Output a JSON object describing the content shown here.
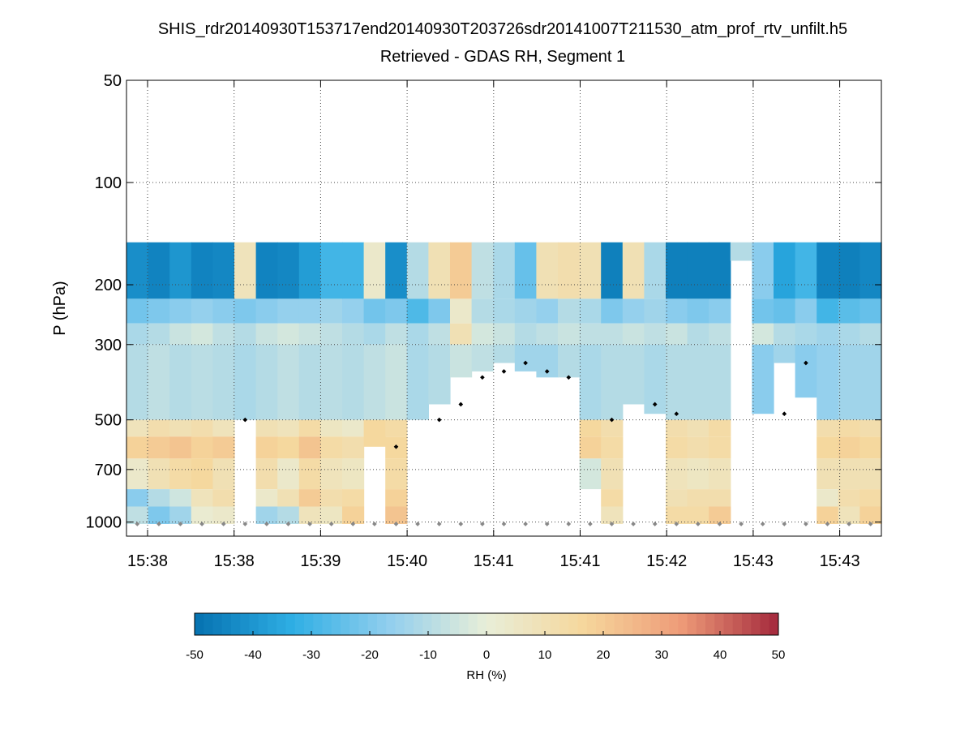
{
  "chart_data": {
    "type": "heatmap",
    "title": "SHIS_rdr20140930T153717end20140930T203726sdr20141007T211530_atm_prof_rtv_unfilt.h5",
    "subtitle": "Retrieved - GDAS RH, Segment 1",
    "xlabel": "",
    "ylabel": "P (hPa)",
    "x_tick_labels": [
      "15:38",
      "15:38",
      "15:39",
      "15:40",
      "15:41",
      "15:41",
      "15:42",
      "15:43",
      "15:43"
    ],
    "y_scale": "log",
    "y_reversed": true,
    "ylim": [
      1100,
      50
    ],
    "y_ticks": [
      50,
      100,
      200,
      300,
      500,
      700,
      1000
    ],
    "grid": true,
    "colorbar": {
      "label": "RH (%)",
      "range": [
        -50,
        50
      ],
      "ticks": [
        -50,
        -40,
        -30,
        -20,
        -10,
        0,
        10,
        20,
        30,
        40,
        50
      ],
      "colormap": [
        "#0571b0",
        "#2eaee4",
        "#92cfee",
        "#e8eed8",
        "#f6d79c",
        "#ee9b78",
        "#a3283c"
      ]
    },
    "num_columns": 35,
    "surface_pressure": 1013,
    "cloud_top_pressure_markers": [
      null,
      null,
      null,
      null,
      null,
      500,
      null,
      null,
      null,
      null,
      null,
      null,
      600,
      null,
      500,
      450,
      375,
      360,
      340,
      360,
      375,
      null,
      500,
      null,
      450,
      480,
      null,
      null,
      null,
      null,
      480,
      340,
      null,
      null,
      null
    ],
    "series": [
      {
        "name": "cloud-top cloud markers",
        "values": [
          null,
          null,
          null,
          null,
          null,
          500,
          null,
          null,
          null,
          null,
          null,
          null,
          600,
          null,
          500,
          450,
          375,
          360,
          340,
          360,
          375,
          null,
          500,
          null,
          450,
          480,
          null,
          null,
          null,
          null,
          480,
          340,
          null,
          null,
          null
        ]
      }
    ],
    "rh_diff_profiles_note": "values in RH (%) by column; each profile lists [pressure_top_hPa, pressure_bottom_hPa, value]",
    "profiles": [
      [
        [
          150,
          220,
          -42
        ],
        [
          220,
          260,
          -22
        ],
        [
          260,
          300,
          -12
        ],
        [
          300,
          500,
          -10
        ],
        [
          500,
          560,
          8
        ],
        [
          560,
          650,
          18
        ],
        [
          650,
          800,
          4
        ],
        [
          800,
          900,
          -18
        ],
        [
          900,
          1013,
          -8
        ]
      ],
      [
        [
          150,
          220,
          -45
        ],
        [
          220,
          260,
          -20
        ],
        [
          260,
          300,
          -10
        ],
        [
          300,
          500,
          -8
        ],
        [
          500,
          560,
          12
        ],
        [
          560,
          650,
          20
        ],
        [
          650,
          800,
          10
        ],
        [
          800,
          900,
          -10
        ],
        [
          900,
          1013,
          -20
        ]
      ],
      [
        [
          150,
          220,
          -40
        ],
        [
          220,
          260,
          -18
        ],
        [
          260,
          300,
          -6
        ],
        [
          300,
          500,
          -10
        ],
        [
          500,
          560,
          10
        ],
        [
          560,
          650,
          22
        ],
        [
          650,
          800,
          14
        ],
        [
          800,
          900,
          -5
        ],
        [
          900,
          1013,
          -14
        ]
      ],
      [
        [
          150,
          220,
          -45
        ],
        [
          220,
          260,
          -16
        ],
        [
          260,
          300,
          -4
        ],
        [
          300,
          500,
          -9
        ],
        [
          500,
          560,
          12
        ],
        [
          560,
          650,
          18
        ],
        [
          650,
          800,
          16
        ],
        [
          800,
          900,
          8
        ],
        [
          900,
          1013,
          2
        ]
      ],
      [
        [
          150,
          220,
          -44
        ],
        [
          220,
          260,
          -18
        ],
        [
          260,
          300,
          -8
        ],
        [
          300,
          500,
          -10
        ],
        [
          500,
          560,
          8
        ],
        [
          560,
          650,
          20
        ],
        [
          650,
          800,
          10
        ],
        [
          800,
          900,
          12
        ],
        [
          900,
          1013,
          4
        ]
      ],
      [
        [
          150,
          220,
          8
        ],
        [
          220,
          260,
          -20
        ],
        [
          260,
          300,
          -10
        ],
        [
          300,
          500,
          -12
        ],
        [
          500,
          1013,
          null
        ]
      ],
      [
        [
          150,
          220,
          -45
        ],
        [
          220,
          260,
          -18
        ],
        [
          260,
          300,
          -6
        ],
        [
          300,
          500,
          -10
        ],
        [
          500,
          560,
          10
        ],
        [
          560,
          650,
          18
        ],
        [
          650,
          800,
          12
        ],
        [
          800,
          900,
          4
        ],
        [
          900,
          1013,
          -14
        ]
      ],
      [
        [
          150,
          220,
          -44
        ],
        [
          220,
          260,
          -16
        ],
        [
          260,
          300,
          -4
        ],
        [
          300,
          500,
          -8
        ],
        [
          500,
          560,
          8
        ],
        [
          560,
          650,
          16
        ],
        [
          650,
          800,
          4
        ],
        [
          800,
          900,
          10
        ],
        [
          900,
          1013,
          -10
        ]
      ],
      [
        [
          150,
          220,
          -38
        ],
        [
          220,
          260,
          -16
        ],
        [
          260,
          300,
          -6
        ],
        [
          300,
          500,
          -10
        ],
        [
          500,
          560,
          14
        ],
        [
          560,
          650,
          22
        ],
        [
          650,
          800,
          14
        ],
        [
          800,
          900,
          20
        ],
        [
          900,
          1013,
          8
        ]
      ],
      [
        [
          150,
          220,
          -30
        ],
        [
          220,
          260,
          -14
        ],
        [
          260,
          300,
          -8
        ],
        [
          300,
          500,
          -9
        ],
        [
          500,
          560,
          6
        ],
        [
          560,
          650,
          14
        ],
        [
          650,
          800,
          8
        ],
        [
          800,
          900,
          12
        ],
        [
          900,
          1013,
          6
        ]
      ],
      [
        [
          150,
          220,
          -30
        ],
        [
          220,
          260,
          -16
        ],
        [
          260,
          300,
          -10
        ],
        [
          300,
          500,
          -10
        ],
        [
          500,
          560,
          4
        ],
        [
          560,
          650,
          12
        ],
        [
          650,
          800,
          6
        ],
        [
          800,
          900,
          14
        ],
        [
          900,
          1013,
          18
        ]
      ],
      [
        [
          150,
          220,
          4
        ],
        [
          220,
          260,
          -22
        ],
        [
          260,
          300,
          -12
        ],
        [
          300,
          500,
          -8
        ],
        [
          500,
          600,
          16
        ],
        [
          600,
          1013,
          null
        ]
      ],
      [
        [
          150,
          220,
          -42
        ],
        [
          220,
          260,
          -20
        ],
        [
          260,
          300,
          -8
        ],
        [
          300,
          500,
          -6
        ],
        [
          500,
          560,
          14
        ],
        [
          560,
          650,
          16
        ],
        [
          650,
          800,
          14
        ],
        [
          800,
          900,
          18
        ],
        [
          900,
          1013,
          22
        ]
      ],
      [
        [
          150,
          220,
          -10
        ],
        [
          220,
          260,
          -28
        ],
        [
          260,
          300,
          -12
        ],
        [
          300,
          500,
          -12
        ],
        [
          500,
          1013,
          null
        ]
      ],
      [
        [
          150,
          220,
          10
        ],
        [
          220,
          260,
          -20
        ],
        [
          260,
          300,
          -8
        ],
        [
          300,
          450,
          -10
        ],
        [
          450,
          1013,
          null
        ]
      ],
      [
        [
          150,
          220,
          20
        ],
        [
          220,
          260,
          4
        ],
        [
          260,
          300,
          10
        ],
        [
          300,
          375,
          -6
        ],
        [
          375,
          1013,
          null
        ]
      ],
      [
        [
          150,
          220,
          -8
        ],
        [
          220,
          260,
          -10
        ],
        [
          260,
          300,
          -4
        ],
        [
          300,
          360,
          -8
        ],
        [
          360,
          1013,
          null
        ]
      ],
      [
        [
          150,
          220,
          -12
        ],
        [
          220,
          260,
          -12
        ],
        [
          260,
          300,
          -6
        ],
        [
          300,
          340,
          -10
        ],
        [
          340,
          1013,
          null
        ]
      ],
      [
        [
          150,
          220,
          -24
        ],
        [
          220,
          260,
          -14
        ],
        [
          260,
          300,
          -10
        ],
        [
          300,
          360,
          -14
        ],
        [
          360,
          1013,
          null
        ]
      ],
      [
        [
          150,
          220,
          10
        ],
        [
          220,
          260,
          -16
        ],
        [
          260,
          300,
          -8
        ],
        [
          300,
          375,
          -14
        ],
        [
          375,
          1013,
          null
        ]
      ],
      [
        [
          150,
          220,
          12
        ],
        [
          220,
          260,
          -10
        ],
        [
          260,
          300,
          -6
        ],
        [
          300,
          375,
          -10
        ],
        [
          375,
          1013,
          null
        ]
      ],
      [
        [
          150,
          220,
          10
        ],
        [
          220,
          260,
          -12
        ],
        [
          260,
          300,
          -8
        ],
        [
          300,
          500,
          -12
        ],
        [
          500,
          560,
          16
        ],
        [
          560,
          650,
          18
        ],
        [
          650,
          800,
          -4
        ],
        [
          800,
          1013,
          null
        ]
      ],
      [
        [
          150,
          220,
          -46
        ],
        [
          220,
          260,
          -20
        ],
        [
          260,
          300,
          -8
        ],
        [
          300,
          500,
          -10
        ],
        [
          500,
          560,
          12
        ],
        [
          560,
          650,
          14
        ],
        [
          650,
          800,
          10
        ],
        [
          800,
          900,
          14
        ],
        [
          900,
          1013,
          8
        ]
      ],
      [
        [
          150,
          220,
          10
        ],
        [
          220,
          260,
          -16
        ],
        [
          260,
          300,
          -6
        ],
        [
          300,
          450,
          -10
        ],
        [
          450,
          1013,
          null
        ]
      ],
      [
        [
          150,
          220,
          -12
        ],
        [
          220,
          260,
          -14
        ],
        [
          260,
          300,
          -8
        ],
        [
          300,
          480,
          -12
        ],
        [
          480,
          1013,
          null
        ]
      ],
      [
        [
          150,
          220,
          -46
        ],
        [
          220,
          260,
          -18
        ],
        [
          260,
          300,
          -6
        ],
        [
          300,
          500,
          -10
        ],
        [
          500,
          560,
          12
        ],
        [
          560,
          650,
          14
        ],
        [
          650,
          800,
          8
        ],
        [
          800,
          900,
          10
        ],
        [
          900,
          1013,
          14
        ]
      ],
      [
        [
          150,
          220,
          -46
        ],
        [
          220,
          260,
          -20
        ],
        [
          260,
          300,
          -10
        ],
        [
          300,
          500,
          -10
        ],
        [
          500,
          560,
          10
        ],
        [
          560,
          650,
          12
        ],
        [
          650,
          800,
          6
        ],
        [
          800,
          900,
          12
        ],
        [
          900,
          1013,
          14
        ]
      ],
      [
        [
          150,
          220,
          -46
        ],
        [
          220,
          260,
          -18
        ],
        [
          260,
          300,
          -8
        ],
        [
          300,
          500,
          -10
        ],
        [
          500,
          560,
          14
        ],
        [
          560,
          650,
          14
        ],
        [
          650,
          800,
          8
        ],
        [
          800,
          900,
          12
        ],
        [
          900,
          1013,
          20
        ]
      ],
      [
        [
          150,
          170,
          -10
        ],
        [
          170,
          1013,
          null
        ]
      ],
      [
        [
          150,
          220,
          -18
        ],
        [
          220,
          260,
          -22
        ],
        [
          260,
          300,
          -4
        ],
        [
          300,
          480,
          -18
        ],
        [
          480,
          1013,
          null
        ]
      ],
      [
        [
          150,
          220,
          -36
        ],
        [
          220,
          260,
          -24
        ],
        [
          260,
          300,
          -10
        ],
        [
          300,
          340,
          -14
        ],
        [
          340,
          1013,
          null
        ]
      ],
      [
        [
          150,
          220,
          -30
        ],
        [
          220,
          260,
          -18
        ],
        [
          260,
          300,
          -12
        ],
        [
          300,
          430,
          -18
        ],
        [
          430,
          1013,
          null
        ]
      ],
      [
        [
          150,
          220,
          -45
        ],
        [
          220,
          260,
          -30
        ],
        [
          260,
          300,
          -14
        ],
        [
          300,
          500,
          -16
        ],
        [
          500,
          560,
          12
        ],
        [
          560,
          650,
          16
        ],
        [
          650,
          800,
          10
        ],
        [
          800,
          900,
          4
        ],
        [
          900,
          1013,
          18
        ]
      ],
      [
        [
          150,
          220,
          -46
        ],
        [
          220,
          260,
          -26
        ],
        [
          260,
          300,
          -12
        ],
        [
          300,
          500,
          -14
        ],
        [
          500,
          560,
          14
        ],
        [
          560,
          650,
          18
        ],
        [
          650,
          800,
          10
        ],
        [
          800,
          900,
          12
        ],
        [
          900,
          1013,
          8
        ]
      ],
      [
        [
          150,
          220,
          -44
        ],
        [
          220,
          260,
          -24
        ],
        [
          260,
          300,
          -10
        ],
        [
          300,
          500,
          -14
        ],
        [
          500,
          560,
          12
        ],
        [
          560,
          650,
          16
        ],
        [
          650,
          800,
          10
        ],
        [
          800,
          900,
          14
        ],
        [
          900,
          1013,
          18
        ]
      ]
    ]
  }
}
